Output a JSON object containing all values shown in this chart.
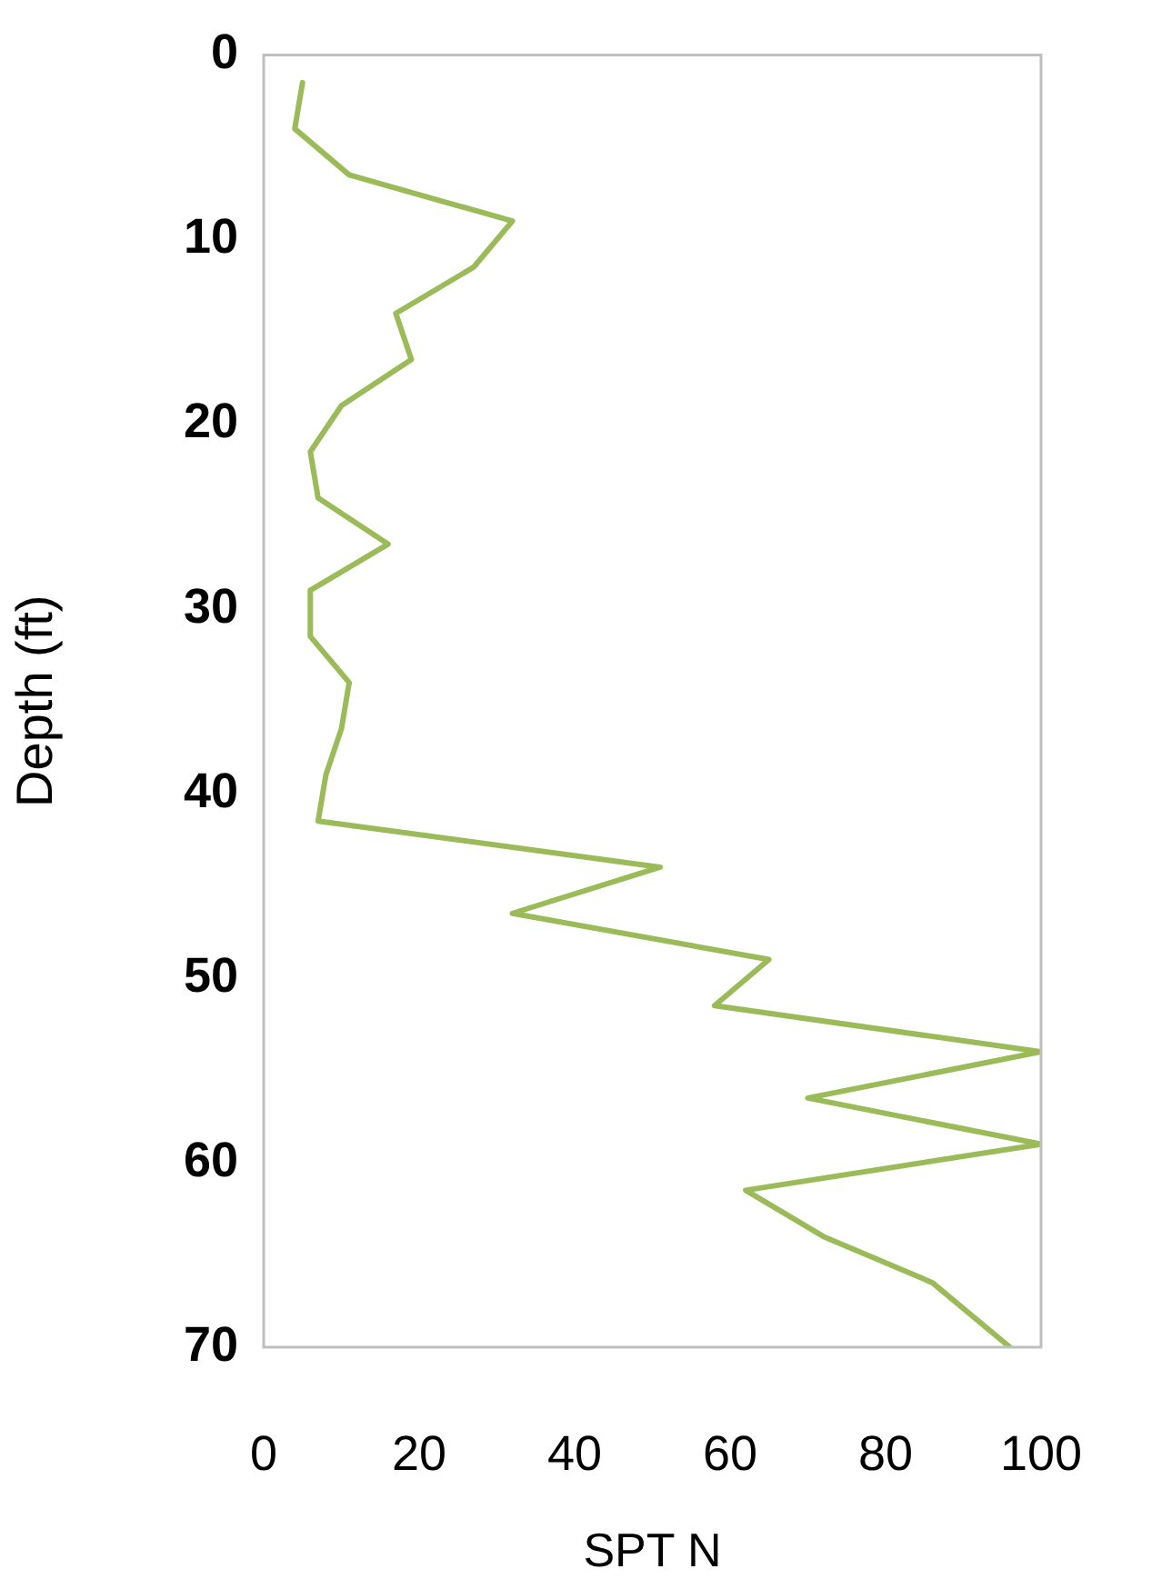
{
  "chart_data": {
    "type": "line",
    "xlabel": "SPT N",
    "ylabel": "Depth (ft)",
    "x": [
      5,
      4,
      11,
      32,
      27,
      17,
      19,
      10,
      6,
      7,
      16,
      6,
      6,
      11,
      10,
      8,
      7,
      51,
      32,
      65,
      58,
      100,
      70,
      100,
      62,
      72,
      86,
      96
    ],
    "series": [
      {
        "color": "#9bbb59",
        "values": [
          1.5,
          4,
          6.5,
          9,
          11.5,
          14,
          16.5,
          19,
          21.5,
          24,
          26.5,
          29,
          31.5,
          34,
          36.5,
          39,
          41.5,
          44,
          46.5,
          49,
          51.5,
          54,
          56.5,
          59,
          61.5,
          64,
          66.5,
          70
        ]
      }
    ],
    "xlim": [
      0,
      100
    ],
    "xticks": [
      0,
      20,
      40,
      60,
      80,
      100
    ],
    "ylim": [
      70,
      0
    ],
    "yticks": [
      0,
      10,
      20,
      30,
      40,
      50,
      60,
      70
    ],
    "grid": false,
    "legend": false,
    "marker": "none",
    "line_style": "solid"
  }
}
